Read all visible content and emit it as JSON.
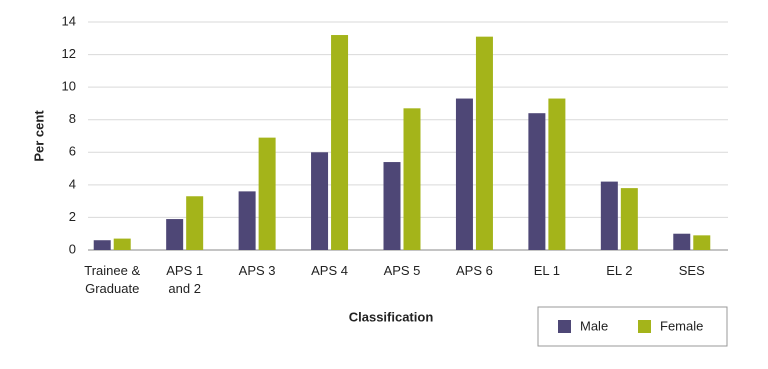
{
  "chart_data": {
    "type": "bar",
    "x_label": "Classification",
    "y_label": "Per cent",
    "categories": [
      "Trainee &\nGraduate",
      "APS 1\nand 2",
      "APS 3",
      "APS 4",
      "APS 5",
      "APS 6",
      "EL 1",
      "EL 2",
      "SES"
    ],
    "series": [
      {
        "name": "Male",
        "color": "#4e4776",
        "values": [
          0.6,
          1.9,
          3.6,
          6.0,
          5.4,
          9.3,
          8.4,
          4.2,
          1.0
        ]
      },
      {
        "name": "Female",
        "color": "#a4b41a",
        "values": [
          0.7,
          3.3,
          6.9,
          13.2,
          8.7,
          13.1,
          9.3,
          3.8,
          0.9
        ]
      }
    ],
    "ylim": [
      0,
      14
    ],
    "yticks": [
      0,
      2,
      4,
      6,
      8,
      10,
      12,
      14
    ],
    "grid": true,
    "legend": "bottom-right"
  }
}
